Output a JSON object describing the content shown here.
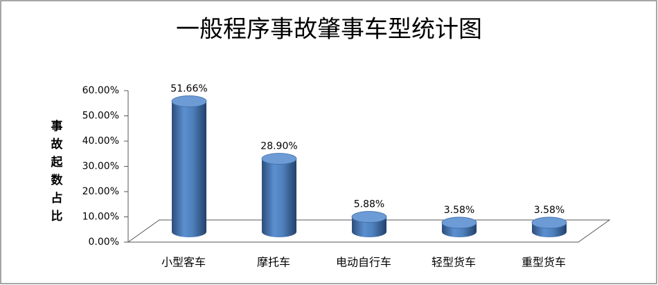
{
  "chart_data": {
    "type": "cylinder-bar",
    "title": "一般程序事故肇事车型统计图",
    "y_label": "事故起数占比",
    "categories": [
      "小型客车",
      "摩托车",
      "电动自行车",
      "轻型货车",
      "重型货车"
    ],
    "values": [
      51.66,
      28.9,
      5.88,
      3.58,
      3.58
    ],
    "value_labels": [
      "51.66%",
      "28.90%",
      "5.88%",
      "3.58%",
      "3.58%"
    ],
    "color": "#4f81bd",
    "ylim": [
      0,
      60
    ],
    "yticks": [
      {
        "value": 0,
        "label": "0.00%"
      },
      {
        "value": 10,
        "label": "10.00%"
      },
      {
        "value": 20,
        "label": "20.00%"
      },
      {
        "value": 30,
        "label": "30.00%"
      },
      {
        "value": 40,
        "label": "40.00%"
      },
      {
        "value": 50,
        "label": "50.00%"
      },
      {
        "value": 60,
        "label": "60.00%"
      }
    ]
  }
}
